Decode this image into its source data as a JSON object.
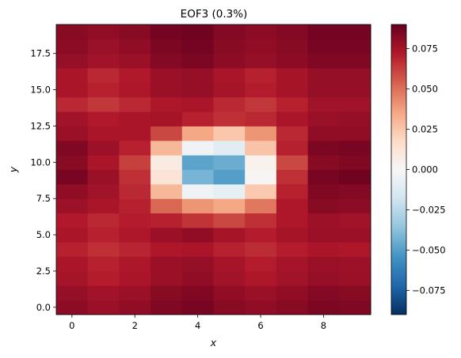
{
  "chart_data": {
    "type": "heatmap",
    "title": "EOF3 (0.3%)",
    "xlabel": "x",
    "ylabel": "y",
    "x": [
      0,
      1,
      2,
      3,
      4,
      5,
      6,
      7,
      8,
      9
    ],
    "y": [
      0,
      1,
      2,
      3,
      4,
      5,
      6,
      7,
      8,
      9,
      10,
      11,
      12,
      13,
      14,
      15,
      16,
      17,
      18,
      19
    ],
    "xlim": [
      -0.5,
      9.5
    ],
    "ylim": [
      -0.5,
      19.5
    ],
    "x_ticks": [
      0,
      2,
      4,
      6,
      8
    ],
    "x_tick_labels": [
      "0",
      "2",
      "4",
      "6",
      "8"
    ],
    "y_ticks": [
      0,
      2.5,
      5,
      7.5,
      10,
      12.5,
      15,
      17.5
    ],
    "y_tick_labels": [
      "0.0",
      "2.5",
      "5.0",
      "7.5",
      "10.0",
      "12.5",
      "15.0",
      "17.5"
    ],
    "colormap": "RdBu_r",
    "vmin": -0.09,
    "vmax": 0.09,
    "colorbar_ticks": [
      -0.075,
      -0.05,
      -0.025,
      0,
      0.025,
      0.05,
      0.075
    ],
    "colorbar_tick_labels": [
      "−0.075",
      "−0.050",
      "−0.025",
      "0.000",
      "0.025",
      "0.050",
      "0.075"
    ],
    "grid": false,
    "values": [
      [
        0.081,
        0.078,
        0.08,
        0.084,
        0.086,
        0.082,
        0.08,
        0.082,
        0.085,
        0.084
      ],
      [
        0.079,
        0.076,
        0.078,
        0.082,
        0.084,
        0.08,
        0.078,
        0.08,
        0.083,
        0.082
      ],
      [
        0.075,
        0.071,
        0.074,
        0.078,
        0.08,
        0.076,
        0.073,
        0.076,
        0.079,
        0.078
      ],
      [
        0.074,
        0.07,
        0.073,
        0.078,
        0.079,
        0.075,
        0.071,
        0.075,
        0.078,
        0.077
      ],
      [
        0.07,
        0.066,
        0.069,
        0.073,
        0.074,
        0.07,
        0.067,
        0.071,
        0.074,
        0.073
      ],
      [
        0.074,
        0.07,
        0.073,
        0.078,
        0.08,
        0.075,
        0.071,
        0.075,
        0.078,
        0.078
      ],
      [
        0.072,
        0.068,
        0.071,
        0.07,
        0.065,
        0.06,
        0.066,
        0.073,
        0.077,
        0.076
      ],
      [
        0.077,
        0.074,
        0.07,
        0.052,
        0.04,
        0.035,
        0.048,
        0.073,
        0.082,
        0.081
      ],
      [
        0.08,
        0.076,
        0.068,
        0.03,
        -0.004,
        -0.008,
        0.024,
        0.07,
        0.084,
        0.083
      ],
      [
        0.086,
        0.078,
        0.066,
        0.012,
        -0.042,
        -0.05,
        0.001,
        0.066,
        0.086,
        0.088
      ],
      [
        0.082,
        0.074,
        0.062,
        0.008,
        -0.048,
        -0.045,
        0.004,
        0.06,
        0.082,
        0.084
      ],
      [
        0.084,
        0.077,
        0.07,
        0.03,
        -0.004,
        -0.01,
        0.026,
        0.07,
        0.085,
        0.086
      ],
      [
        0.078,
        0.074,
        0.074,
        0.06,
        0.035,
        0.025,
        0.04,
        0.068,
        0.08,
        0.08
      ],
      [
        0.076,
        0.072,
        0.074,
        0.075,
        0.07,
        0.066,
        0.068,
        0.074,
        0.078,
        0.079
      ],
      [
        0.068,
        0.064,
        0.068,
        0.073,
        0.074,
        0.068,
        0.064,
        0.07,
        0.076,
        0.076
      ],
      [
        0.074,
        0.07,
        0.073,
        0.078,
        0.079,
        0.075,
        0.071,
        0.075,
        0.079,
        0.079
      ],
      [
        0.074,
        0.068,
        0.072,
        0.078,
        0.079,
        0.074,
        0.07,
        0.075,
        0.079,
        0.079
      ],
      [
        0.079,
        0.076,
        0.078,
        0.083,
        0.085,
        0.081,
        0.079,
        0.081,
        0.084,
        0.084
      ],
      [
        0.081,
        0.078,
        0.08,
        0.085,
        0.087,
        0.082,
        0.08,
        0.082,
        0.086,
        0.086
      ],
      [
        0.082,
        0.08,
        0.082,
        0.087,
        0.088,
        0.083,
        0.081,
        0.083,
        0.087,
        0.087
      ]
    ]
  }
}
